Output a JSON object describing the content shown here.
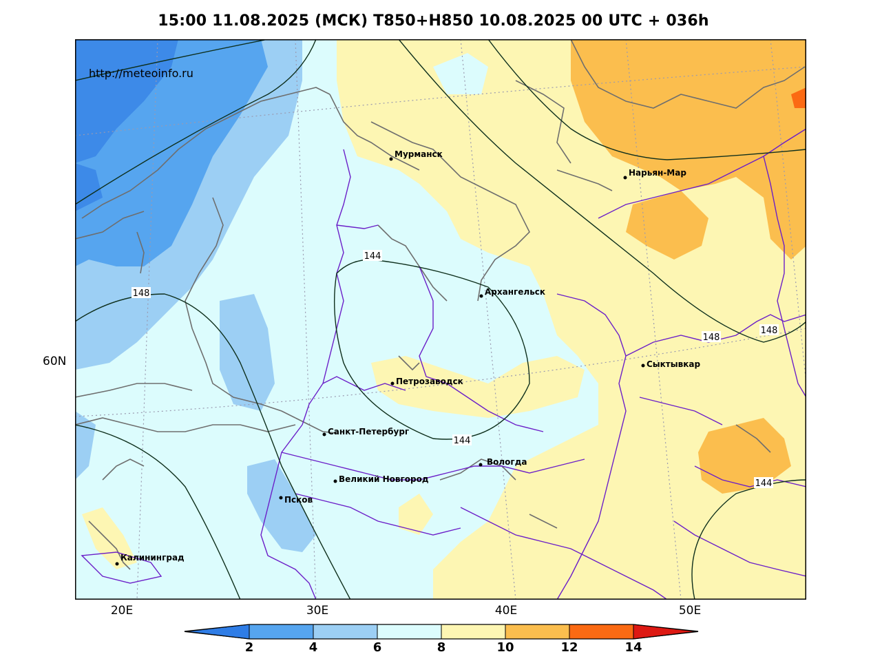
{
  "title": "15:00 11.08.2025 (МСК) T850+H850 10.08.2025 00 UTC + 036h",
  "site": "http://meteoinfo.ru",
  "longitude_labels": [
    "20E",
    "30E",
    "40E",
    "50E"
  ],
  "latitude_labels": [
    "60N"
  ],
  "cities": [
    "Мурманск",
    "Нарьян-Мар",
    "Архангельск",
    "Сыктывкар",
    "Петрозаводск",
    "Санкт-Петербург",
    "Вологда",
    "Великий Новгород",
    "Псков",
    "Калининград"
  ],
  "contour_labels": [
    "144",
    "148",
    "148",
    "148",
    "144",
    "144"
  ],
  "colorbar": {
    "ticks": [
      "2",
      "4",
      "6",
      "8",
      "10",
      "12",
      "14"
    ],
    "colors": [
      "#2f7de6",
      "#56a5ef",
      "#9ccff4",
      "#dcfcfd",
      "#fdf6b3",
      "#fbbe4e",
      "#fb6a13",
      "#dd1913"
    ]
  },
  "colors": {
    "deep_blue": "#3d8ae8",
    "blue": "#56a5ef",
    "light_blue": "#9ccff4",
    "cyan": "#dcfcfd",
    "yellow": "#fdf6b3",
    "orange": "#fbbe4e",
    "red_orange": "#fb6a13"
  }
}
